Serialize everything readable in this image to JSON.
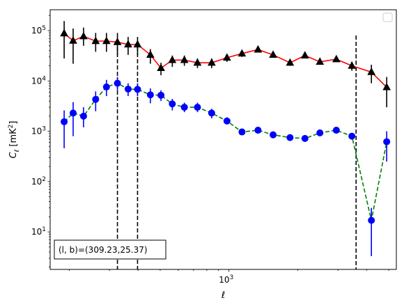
{
  "chart_data": {
    "type": "line",
    "title": "",
    "xlabel": "ℓ",
    "ylabel": "C_ℓ [mK²]",
    "xscale": "log",
    "yscale": "log",
    "xlim": [
      165,
      5400
    ],
    "ylim": [
      1.8,
      260000
    ],
    "grid": false,
    "legend": "top-right (empty)",
    "x_tick_labels": [
      {
        "value": 1000,
        "label": "10³"
      }
    ],
    "y_tick_labels": [
      {
        "value": 10,
        "label": "10¹"
      },
      {
        "value": 100,
        "label": "10²"
      },
      {
        "value": 1000,
        "label": "10³"
      },
      {
        "value": 10000,
        "label": "10⁴"
      },
      {
        "value": 100000,
        "label": "10⁵"
      }
    ],
    "series": [
      {
        "color": "#ff0000",
        "marker": "triangle",
        "marker_color": "#000000",
        "linestyle": "solid",
        "points": [
          {
            "x": 190,
            "y": 88000,
            "err_lo": 28000,
            "err_hi": 155000
          },
          {
            "x": 208,
            "y": 63000,
            "err_lo": 22000,
            "err_hi": 110000
          },
          {
            "x": 231,
            "y": 77000,
            "err_lo": 50000,
            "err_hi": 115000
          },
          {
            "x": 261,
            "y": 62000,
            "err_lo": 38000,
            "err_hi": 90000
          },
          {
            "x": 291,
            "y": 62000,
            "err_lo": 38000,
            "err_hi": 90000
          },
          {
            "x": 325,
            "y": 59000,
            "err_lo": 33000,
            "err_hi": 90000
          },
          {
            "x": 362,
            "y": 53000,
            "err_lo": 33000,
            "err_hi": 75000
          },
          {
            "x": 398,
            "y": 53000,
            "err_lo": 33000,
            "err_hi": 75000
          },
          {
            "x": 453,
            "y": 33000,
            "err_lo": 22000,
            "err_hi": 43000
          },
          {
            "x": 504,
            "y": 18000,
            "err_lo": 13000,
            "err_hi": 23000
          },
          {
            "x": 565,
            "y": 26000,
            "err_lo": 19000,
            "err_hi": 32000
          },
          {
            "x": 638,
            "y": 26000,
            "err_lo": 20000,
            "err_hi": 32000
          },
          {
            "x": 728,
            "y": 23000,
            "err_lo": 18000,
            "err_hi": 28000
          },
          {
            "x": 840,
            "y": 23000,
            "err_lo": 18000,
            "err_hi": 28000
          },
          {
            "x": 980,
            "y": 29000,
            "err_lo": 24000,
            "err_hi": 34000
          },
          {
            "x": 1140,
            "y": 35000,
            "err_lo": 30000,
            "err_hi": 40000
          },
          {
            "x": 1340,
            "y": 42000,
            "err_lo": 37000,
            "err_hi": 47000
          },
          {
            "x": 1560,
            "y": 33000,
            "err_lo": 29000,
            "err_hi": 37000
          },
          {
            "x": 1850,
            "y": 23000,
            "err_lo": 20000,
            "err_hi": 26000
          },
          {
            "x": 2150,
            "y": 32000,
            "err_lo": 28000,
            "err_hi": 36000
          },
          {
            "x": 2500,
            "y": 24000,
            "err_lo": 21000,
            "err_hi": 27000
          },
          {
            "x": 2950,
            "y": 27000,
            "err_lo": 24000,
            "err_hi": 30000
          },
          {
            "x": 3450,
            "y": 20000,
            "err_lo": 16000,
            "err_hi": 24000
          },
          {
            "x": 4200,
            "y": 15000,
            "err_lo": 9000,
            "err_hi": 21000
          },
          {
            "x": 4900,
            "y": 7500,
            "err_lo": 3000,
            "err_hi": 12000
          }
        ]
      },
      {
        "color": "#008000",
        "marker": "circle",
        "marker_color": "#0000ff",
        "linestyle": "dashed",
        "points": [
          {
            "x": 190,
            "y": 1550,
            "err_lo": 460,
            "err_hi": 2600
          },
          {
            "x": 208,
            "y": 2300,
            "err_lo": 800,
            "err_hi": 3800
          },
          {
            "x": 231,
            "y": 2000,
            "err_lo": 1200,
            "err_hi": 3000
          },
          {
            "x": 261,
            "y": 4300,
            "err_lo": 2500,
            "err_hi": 6200
          },
          {
            "x": 291,
            "y": 7600,
            "err_lo": 5000,
            "err_hi": 10500
          },
          {
            "x": 325,
            "y": 9000,
            "err_lo": 6500,
            "err_hi": 12000
          },
          {
            "x": 362,
            "y": 6900,
            "err_lo": 5000,
            "err_hi": 9000
          },
          {
            "x": 398,
            "y": 6800,
            "err_lo": 5000,
            "err_hi": 9000
          },
          {
            "x": 453,
            "y": 5300,
            "err_lo": 3600,
            "err_hi": 7100
          },
          {
            "x": 504,
            "y": 5200,
            "err_lo": 4000,
            "err_hi": 6500
          },
          {
            "x": 565,
            "y": 3500,
            "err_lo": 2600,
            "err_hi": 4400
          },
          {
            "x": 638,
            "y": 3000,
            "err_lo": 2400,
            "err_hi": 3700
          },
          {
            "x": 728,
            "y": 3000,
            "err_lo": 2400,
            "err_hi": 3700
          },
          {
            "x": 840,
            "y": 2300,
            "err_lo": 1800,
            "err_hi": 2800
          },
          {
            "x": 980,
            "y": 1600,
            "err_lo": 1400,
            "err_hi": 1900
          },
          {
            "x": 1140,
            "y": 970,
            "err_lo": 850,
            "err_hi": 1100
          },
          {
            "x": 1340,
            "y": 1050,
            "err_lo": 920,
            "err_hi": 1200
          },
          {
            "x": 1560,
            "y": 850,
            "err_lo": 730,
            "err_hi": 970
          },
          {
            "x": 1850,
            "y": 750,
            "err_lo": 640,
            "err_hi": 860
          },
          {
            "x": 2150,
            "y": 720,
            "err_lo": 620,
            "err_hi": 830
          },
          {
            "x": 2500,
            "y": 930,
            "err_lo": 820,
            "err_hi": 1050
          },
          {
            "x": 2950,
            "y": 1050,
            "err_lo": 920,
            "err_hi": 1180
          },
          {
            "x": 3450,
            "y": 800,
            "err_lo": 680,
            "err_hi": 920
          },
          {
            "x": 4200,
            "y": 17,
            "err_lo": 3.3,
            "err_hi": 30
          },
          {
            "x": 4900,
            "y": 620,
            "err_lo": 250,
            "err_hi": 1000
          }
        ]
      }
    ],
    "vlines": [
      {
        "x": 325,
        "color": "#000000",
        "linestyle": "dashed",
        "ymax": 48000
      },
      {
        "x": 398,
        "color": "#000000",
        "linestyle": "dashed",
        "ymax": 48000
      },
      {
        "x": 3600,
        "color": "#000000",
        "linestyle": "dashed",
        "ymax": 80000
      }
    ],
    "annotation": {
      "text": "(l, b)=(309.23,25.37)",
      "position": "lower-left"
    }
  }
}
